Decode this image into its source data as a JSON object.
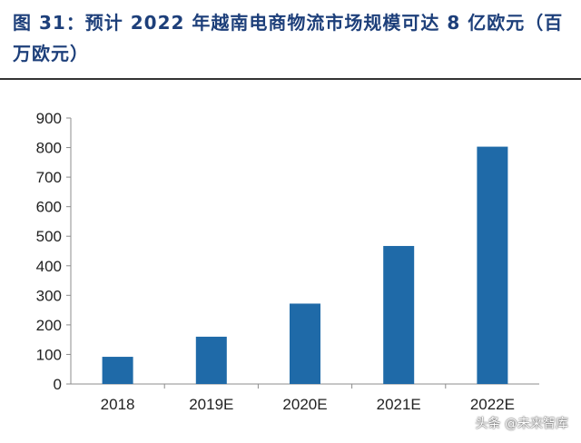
{
  "figure": {
    "title": "图 31：预计 2022 年越南电商物流市场规模可达 8 亿欧元（百万欧元）"
  },
  "watermark": "头条 @未来智库",
  "colors": {
    "bar": "#1f6aa8",
    "axis": "#8c8c8c",
    "title": "#1d3f7a"
  },
  "chart_data": {
    "type": "bar",
    "categories": [
      "2018",
      "2019E",
      "2020E",
      "2021E",
      "2022E"
    ],
    "values": [
      92,
      160,
      272,
      467,
      803
    ],
    "ylim": [
      0,
      900
    ],
    "yticks": [
      0,
      100,
      200,
      300,
      400,
      500,
      600,
      700,
      800,
      900
    ],
    "grid": false,
    "legend": "none"
  }
}
